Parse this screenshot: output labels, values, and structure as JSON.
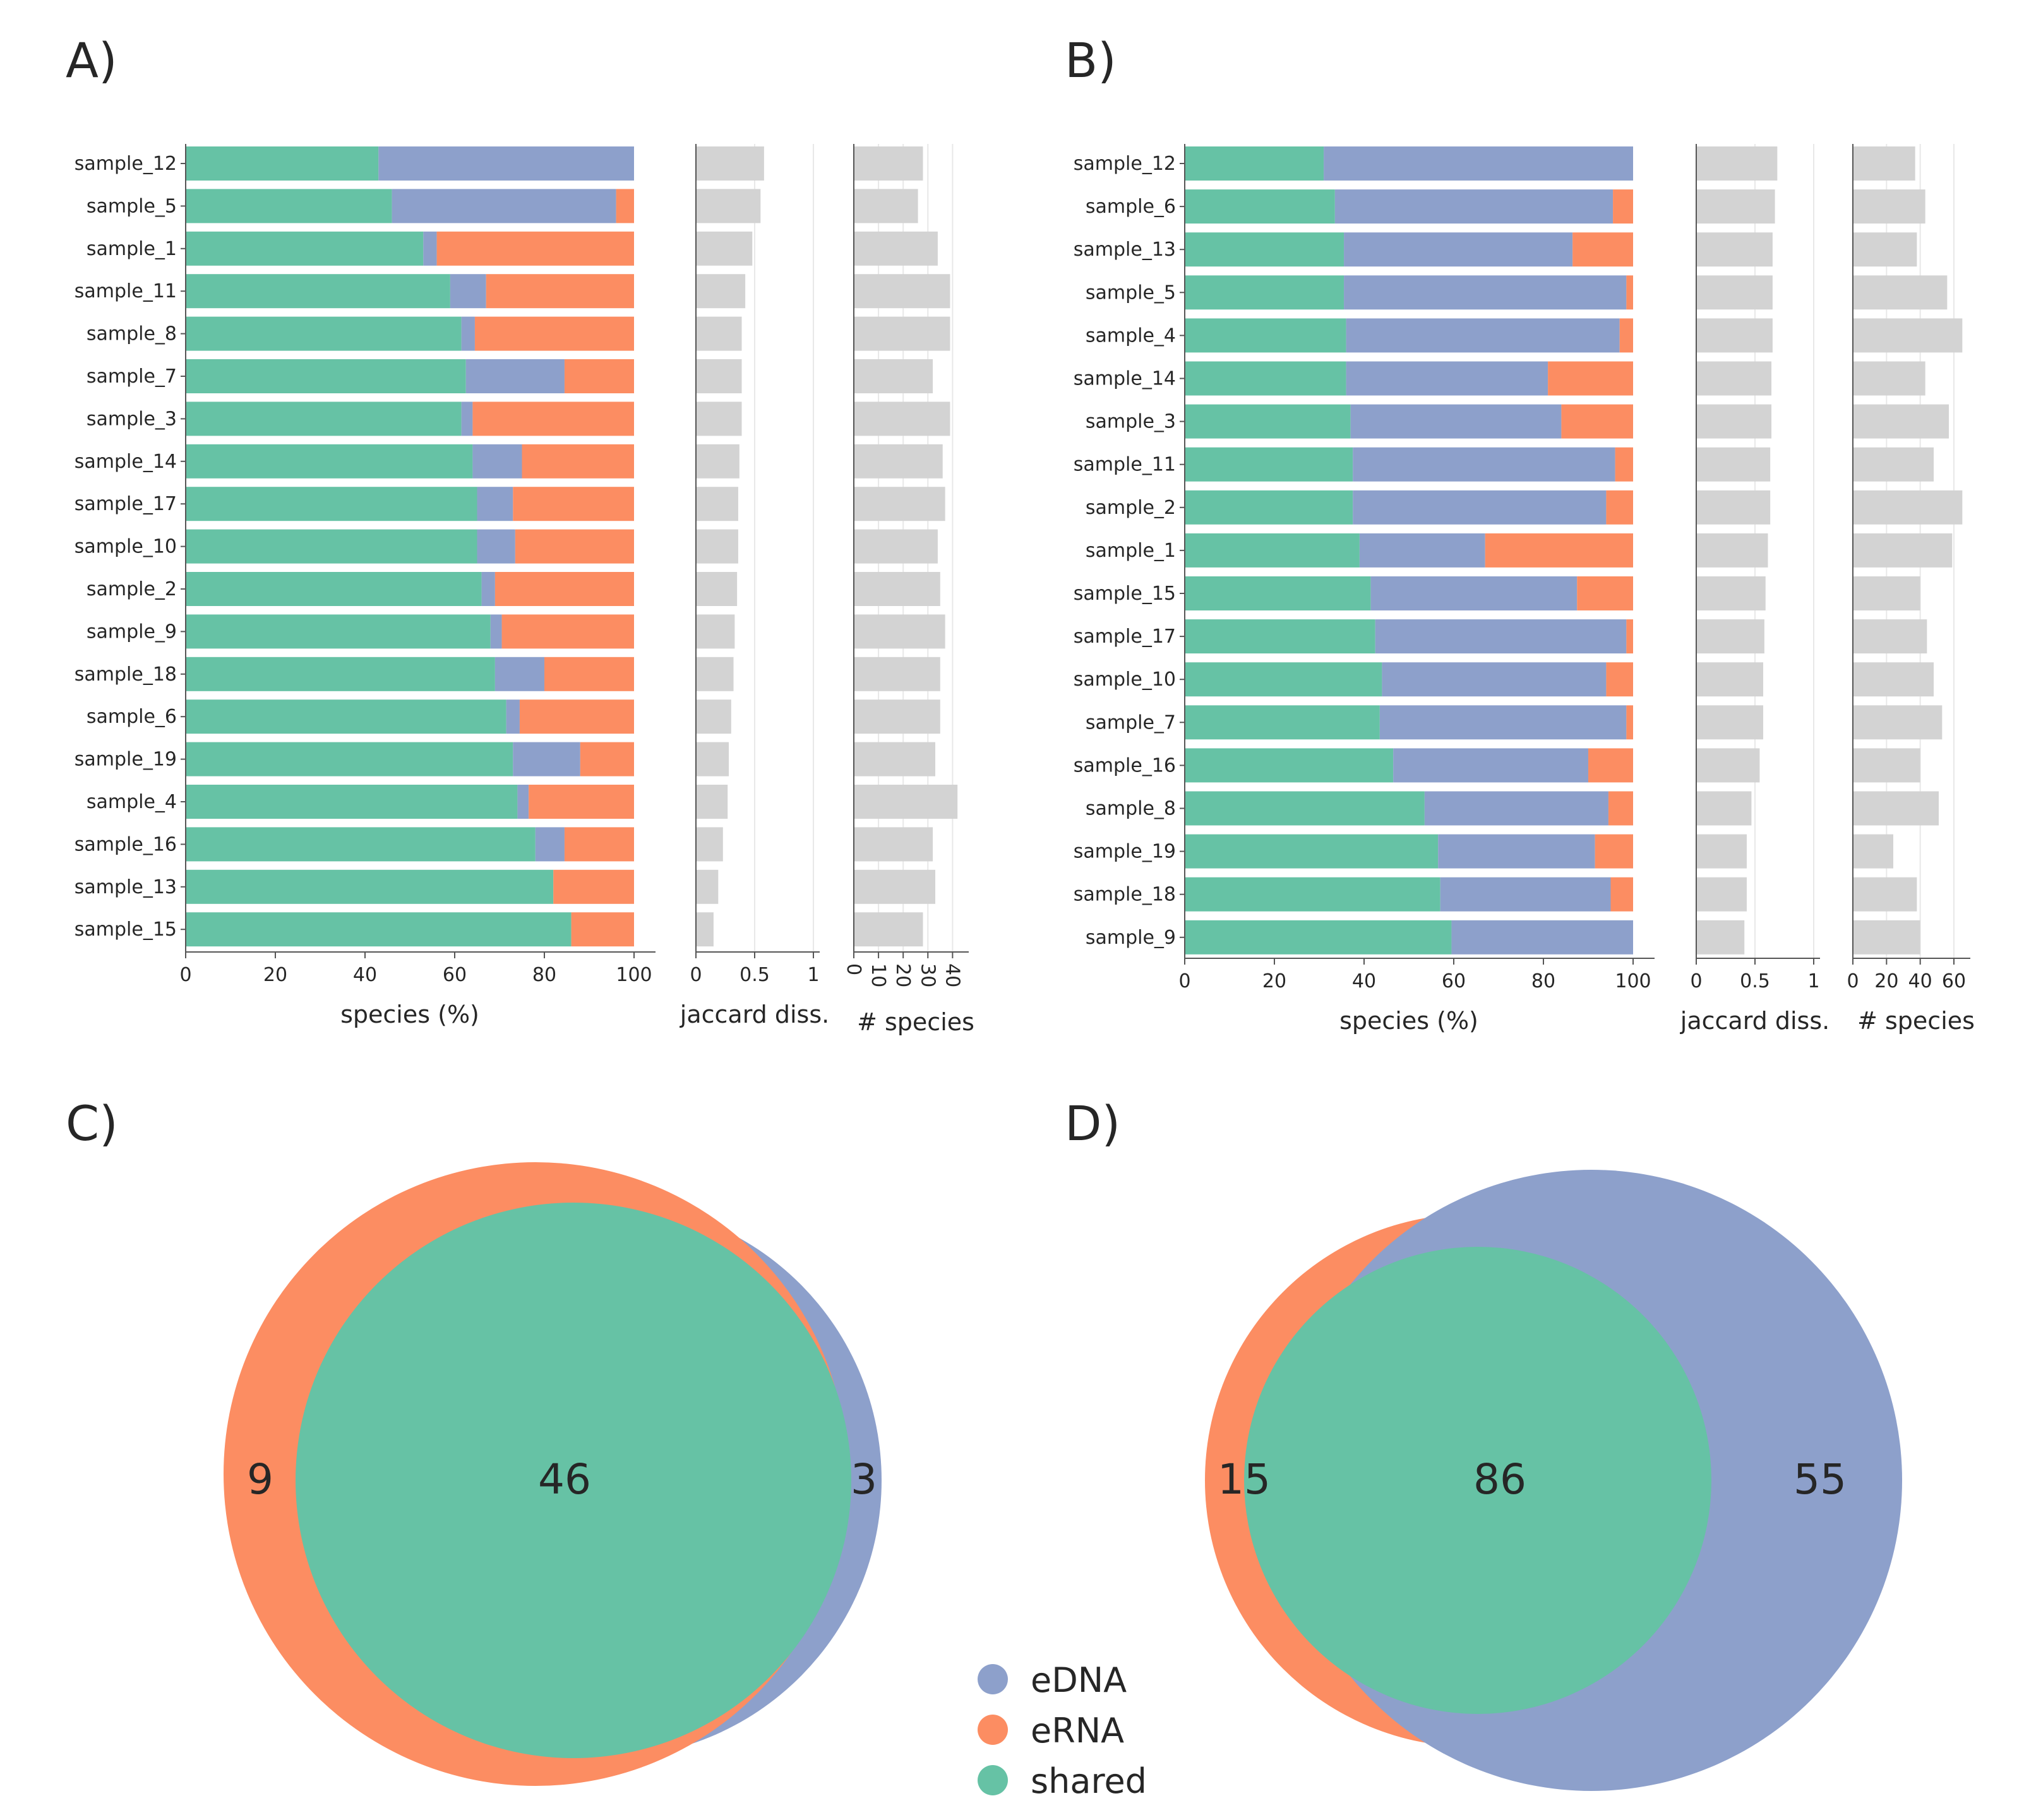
{
  "colors": {
    "shared": "#66c2a5",
    "edna": "#8da0cb",
    "erna": "#fc8d62",
    "gray": "#d3d3d3",
    "axis": "#555555",
    "grid": "#e8e8e8"
  },
  "legend": [
    {
      "key": "edna",
      "label": "eDNA"
    },
    {
      "key": "erna",
      "label": "eRNA"
    },
    {
      "key": "shared",
      "label": "shared"
    }
  ],
  "chart_data": [
    {
      "panel": "A)",
      "type": "bar",
      "orientation": "horizontal",
      "stacked": true,
      "xlabel": "species (%)",
      "xlim": [
        0,
        100
      ],
      "xticks": [
        0,
        20,
        40,
        60,
        80,
        100
      ],
      "categories": [
        "sample_12",
        "sample_5",
        "sample_1",
        "sample_11",
        "sample_8",
        "sample_7",
        "sample_3",
        "sample_14",
        "sample_17",
        "sample_10",
        "sample_2",
        "sample_9",
        "sample_18",
        "sample_6",
        "sample_19",
        "sample_4",
        "sample_16",
        "sample_13",
        "sample_15"
      ],
      "series": [
        {
          "key": "shared",
          "values": [
            43,
            46,
            53,
            59,
            61.5,
            62.5,
            61.5,
            64,
            65,
            65,
            66,
            68,
            69,
            71.5,
            73,
            74,
            78,
            82,
            86
          ]
        },
        {
          "key": "edna",
          "values": [
            57,
            50,
            3,
            8,
            3,
            22,
            2.5,
            11,
            8,
            8.5,
            3,
            2.5,
            11,
            3,
            15,
            2.5,
            6.5,
            0,
            0
          ]
        },
        {
          "key": "erna",
          "values": [
            0,
            4,
            44,
            33,
            35.5,
            15.5,
            36,
            25,
            27,
            26.5,
            31,
            29.5,
            20,
            25.5,
            12,
            23.5,
            15.5,
            18,
            14
          ]
        }
      ],
      "side_panels": [
        {
          "xlabel": "jaccard diss.",
          "xlim": [
            0,
            1
          ],
          "xticks": [
            "0",
            "0.5",
            "1"
          ],
          "tick_values": [
            0,
            0.5,
            1
          ],
          "rotated": false,
          "values": [
            0.58,
            0.55,
            0.48,
            0.42,
            0.39,
            0.39,
            0.39,
            0.37,
            0.36,
            0.36,
            0.35,
            0.33,
            0.32,
            0.3,
            0.28,
            0.27,
            0.23,
            0.19,
            0.15
          ]
        },
        {
          "xlabel": "# species",
          "xlim": [
            0,
            44
          ],
          "xticks": [
            "0",
            "10",
            "20",
            "30",
            "40"
          ],
          "tick_values": [
            0,
            10,
            20,
            30,
            40
          ],
          "rotated": true,
          "values": [
            28,
            26,
            34,
            39,
            39,
            32,
            39,
            36,
            37,
            34,
            35,
            37,
            35,
            35,
            33,
            42,
            32,
            33,
            28
          ]
        }
      ]
    },
    {
      "panel": "B)",
      "type": "bar",
      "orientation": "horizontal",
      "stacked": true,
      "xlabel": "species (%)",
      "xlim": [
        0,
        100
      ],
      "xticks": [
        0,
        20,
        40,
        60,
        80,
        100
      ],
      "categories": [
        "sample_12",
        "sample_6",
        "sample_13",
        "sample_5",
        "sample_4",
        "sample_14",
        "sample_3",
        "sample_11",
        "sample_2",
        "sample_1",
        "sample_15",
        "sample_17",
        "sample_10",
        "sample_7",
        "sample_16",
        "sample_8",
        "sample_19",
        "sample_18",
        "sample_9"
      ],
      "series": [
        {
          "key": "shared",
          "values": [
            31,
            33.5,
            35.5,
            35.5,
            36,
            36,
            37,
            37.5,
            37.5,
            39,
            41.5,
            42.5,
            44,
            43.5,
            46.5,
            53.5,
            56.5,
            57,
            59.5
          ]
        },
        {
          "key": "edna",
          "values": [
            69,
            62,
            51,
            63,
            61,
            45,
            47,
            58.5,
            56.5,
            28,
            46,
            56,
            50,
            55,
            43.5,
            41,
            35,
            38,
            40.5
          ]
        },
        {
          "key": "erna",
          "values": [
            0,
            4.5,
            13.5,
            1.5,
            3,
            19,
            16,
            4,
            6,
            33,
            12.5,
            1.5,
            6,
            1.5,
            10,
            5.5,
            8.5,
            5,
            0
          ]
        }
      ],
      "side_panels": [
        {
          "xlabel": "jaccard diss.",
          "xlim": [
            0,
            1
          ],
          "xticks": [
            "0",
            "0.5",
            "1"
          ],
          "tick_values": [
            0,
            0.5,
            1
          ],
          "rotated": false,
          "values": [
            0.69,
            0.67,
            0.65,
            0.65,
            0.65,
            0.64,
            0.64,
            0.63,
            0.63,
            0.61,
            0.59,
            0.58,
            0.57,
            0.57,
            0.54,
            0.47,
            0.43,
            0.43,
            0.41
          ]
        },
        {
          "xlabel": "# species",
          "xlim": [
            0,
            66
          ],
          "xticks": [
            "0",
            "20",
            "40",
            "60"
          ],
          "tick_values": [
            0,
            20,
            40,
            60
          ],
          "rotated": false,
          "values": [
            37,
            43,
            38,
            56,
            65,
            43,
            57,
            48,
            65,
            59,
            40,
            44,
            48,
            53,
            40,
            51,
            24,
            38,
            40
          ]
        }
      ]
    },
    {
      "panel": "C)",
      "type": "venn",
      "sets": {
        "erna_only": 9,
        "shared": 46,
        "edna_only": 3
      }
    },
    {
      "panel": "D)",
      "type": "venn",
      "sets": {
        "erna_only": 15,
        "shared": 86,
        "edna_only": 55
      }
    }
  ]
}
